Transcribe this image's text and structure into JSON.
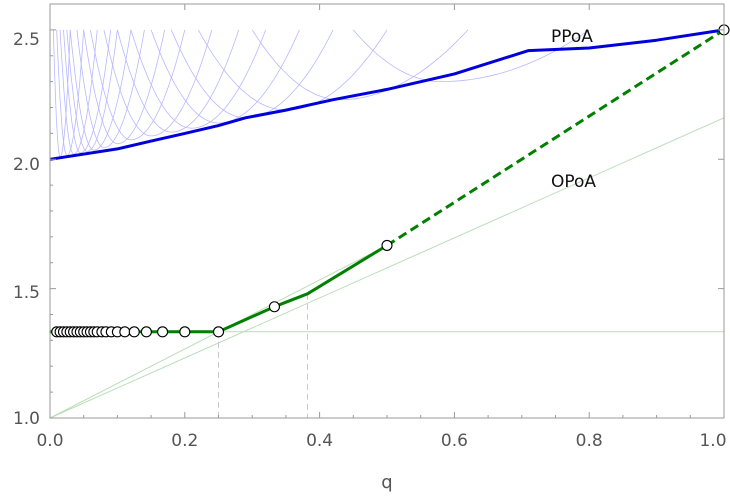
{
  "chart_data": {
    "type": "line",
    "title": "",
    "xlabel": "q",
    "ylabel": "",
    "xlim": [
      0,
      1
    ],
    "ylim": [
      1.0,
      2.6
    ],
    "x_ticks": [
      "0.0",
      "0.2",
      "0.4",
      "0.6",
      "0.8",
      "1.0"
    ],
    "y_ticks": [
      "1.0",
      "1.5",
      "2.0",
      "2.5"
    ],
    "grid": false,
    "colors": {
      "ppoa": "#0000dd",
      "family_curves": "#b8b8ff",
      "opoa": "#008000",
      "guide_lines": "#b9deb9",
      "vertical_markers": "#c8c8c8",
      "frame": "#9a9a9a"
    },
    "series": [
      {
        "name": "PPoA",
        "style": "solid",
        "points": [
          [
            0.0,
            2.0
          ],
          [
            0.1,
            2.04
          ],
          [
            0.15,
            2.07
          ],
          [
            0.2,
            2.1
          ],
          [
            0.25,
            2.13
          ],
          [
            0.29,
            2.16
          ],
          [
            0.35,
            2.19
          ],
          [
            0.42,
            2.23
          ],
          [
            0.5,
            2.27
          ],
          [
            0.6,
            2.33
          ],
          [
            0.71,
            2.42
          ],
          [
            0.8,
            2.43
          ],
          [
            0.9,
            2.46
          ],
          [
            1.0,
            2.5
          ]
        ]
      },
      {
        "name": "OPoA",
        "style": "solid",
        "points": [
          [
            0.0,
            1.333
          ],
          [
            0.25,
            1.333
          ],
          [
            0.333,
            1.43
          ],
          [
            0.382,
            1.48
          ],
          [
            0.5,
            1.667
          ]
        ]
      },
      {
        "name": "OPoA",
        "style": "dashed",
        "points": [
          [
            0.5,
            1.667
          ],
          [
            1.0,
            2.5
          ]
        ]
      }
    ],
    "markers": [
      [
        0.01,
        1.333
      ],
      [
        0.015,
        1.333
      ],
      [
        0.02,
        1.333
      ],
      [
        0.025,
        1.333
      ],
      [
        0.03,
        1.333
      ],
      [
        0.035,
        1.333
      ],
      [
        0.04,
        1.333
      ],
      [
        0.045,
        1.333
      ],
      [
        0.05,
        1.333
      ],
      [
        0.055,
        1.333
      ],
      [
        0.06,
        1.333
      ],
      [
        0.065,
        1.333
      ],
      [
        0.07,
        1.333
      ],
      [
        0.077,
        1.333
      ],
      [
        0.083,
        1.333
      ],
      [
        0.091,
        1.333
      ],
      [
        0.1,
        1.333
      ],
      [
        0.111,
        1.333
      ],
      [
        0.125,
        1.333
      ],
      [
        0.143,
        1.333
      ],
      [
        0.167,
        1.333
      ],
      [
        0.2,
        1.333
      ],
      [
        0.25,
        1.333
      ],
      [
        0.333,
        1.43
      ],
      [
        0.5,
        1.667
      ],
      [
        1.0,
        2.5
      ]
    ],
    "reference_lines": [
      {
        "points": [
          [
            0.0,
            1.333
          ],
          [
            1.0,
            1.333
          ]
        ]
      },
      {
        "points": [
          [
            0.0,
            1.0
          ],
          [
            1.0,
            2.16
          ]
        ]
      },
      {
        "points": [
          [
            0.0,
            1.0
          ],
          [
            0.5,
            1.667
          ]
        ]
      }
    ],
    "vertical_markers": [
      {
        "x": 0.25,
        "y_top": 1.333
      },
      {
        "x": 0.382,
        "y_top": 1.48
      }
    ],
    "family_curves": [
      {
        "x_range": [
          0.005,
          0.03
        ],
        "vertex_x": 0.015,
        "vertex_y": 2.01
      },
      {
        "x_range": [
          0.01,
          0.05
        ],
        "vertex_x": 0.025,
        "vertex_y": 2.015
      },
      {
        "x_range": [
          0.015,
          0.07
        ],
        "vertex_x": 0.035,
        "vertex_y": 2.02
      },
      {
        "x_range": [
          0.02,
          0.09
        ],
        "vertex_x": 0.045,
        "vertex_y": 2.025
      },
      {
        "x_range": [
          0.025,
          0.1
        ],
        "vertex_x": 0.055,
        "vertex_y": 2.03
      },
      {
        "x_range": [
          0.03,
          0.12
        ],
        "vertex_x": 0.065,
        "vertex_y": 2.035
      },
      {
        "x_range": [
          0.04,
          0.14
        ],
        "vertex_x": 0.08,
        "vertex_y": 2.045
      },
      {
        "x_range": [
          0.05,
          0.17
        ],
        "vertex_x": 0.1,
        "vertex_y": 2.06
      },
      {
        "x_range": [
          0.06,
          0.2
        ],
        "vertex_x": 0.12,
        "vertex_y": 2.075
      },
      {
        "x_range": [
          0.08,
          0.24
        ],
        "vertex_x": 0.15,
        "vertex_y": 2.09
      },
      {
        "x_range": [
          0.1,
          0.28
        ],
        "vertex_x": 0.18,
        "vertex_y": 2.105
      },
      {
        "x_range": [
          0.12,
          0.32
        ],
        "vertex_x": 0.21,
        "vertex_y": 2.12
      },
      {
        "x_range": [
          0.15,
          0.37
        ],
        "vertex_x": 0.25,
        "vertex_y": 2.14
      },
      {
        "x_range": [
          0.18,
          0.42
        ],
        "vertex_x": 0.29,
        "vertex_y": 2.16
      },
      {
        "x_range": [
          0.22,
          0.5
        ],
        "vertex_x": 0.35,
        "vertex_y": 2.19
      },
      {
        "x_range": [
          0.3,
          0.62
        ],
        "vertex_x": 0.43,
        "vertex_y": 2.23
      },
      {
        "x_range": [
          0.45,
          0.8
        ],
        "vertex_x": 0.58,
        "vertex_y": 2.3
      }
    ]
  }
}
